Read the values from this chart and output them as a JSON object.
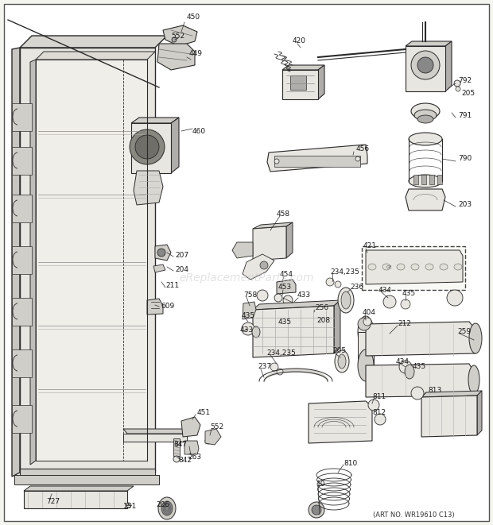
{
  "bg_color": "#f5f5f0",
  "border_color": "#888888",
  "watermark": "eReplacementParts.com",
  "art_no": "(ART NO. WR19610 C13)",
  "fig_width": 6.2,
  "fig_height": 6.61,
  "dpi": 100,
  "line_color": "#2a2a2a",
  "fill_light": "#e8e6e0",
  "fill_mid": "#d0cec8",
  "fill_dark": "#b0aeaa",
  "label_fontsize": 6.5,
  "label_color": "#1a1a1a"
}
